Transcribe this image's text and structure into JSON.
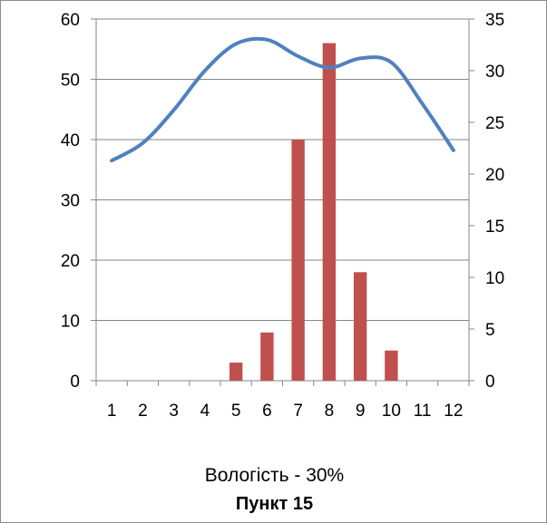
{
  "chart_data": {
    "type": "bar+line",
    "categories": [
      "1",
      "2",
      "3",
      "4",
      "5",
      "6",
      "7",
      "8",
      "9",
      "10",
      "11",
      "12"
    ],
    "series": [
      {
        "kind": "bar",
        "axis": "left",
        "color": "#c0504d",
        "values": [
          0,
          0,
          0,
          0,
          3,
          8,
          40,
          56,
          18,
          5,
          0,
          0
        ]
      },
      {
        "kind": "line",
        "axis": "right",
        "color": "#4f81bd",
        "values": [
          21.3,
          23.0,
          26.2,
          30.0,
          32.6,
          33.0,
          31.4,
          30.3,
          31.2,
          30.8,
          26.8,
          22.3
        ]
      }
    ],
    "y_left": {
      "min": 0,
      "max": 60,
      "ticks": [
        "0",
        "10",
        "20",
        "30",
        "40",
        "50",
        "60"
      ]
    },
    "y_right": {
      "min": 0,
      "max": 35,
      "ticks": [
        "0",
        "5",
        "10",
        "15",
        "20",
        "25",
        "30",
        "35"
      ]
    },
    "grid": "horizontal",
    "subtitle": "Вологість - 30%",
    "title": "Пункт 15"
  }
}
